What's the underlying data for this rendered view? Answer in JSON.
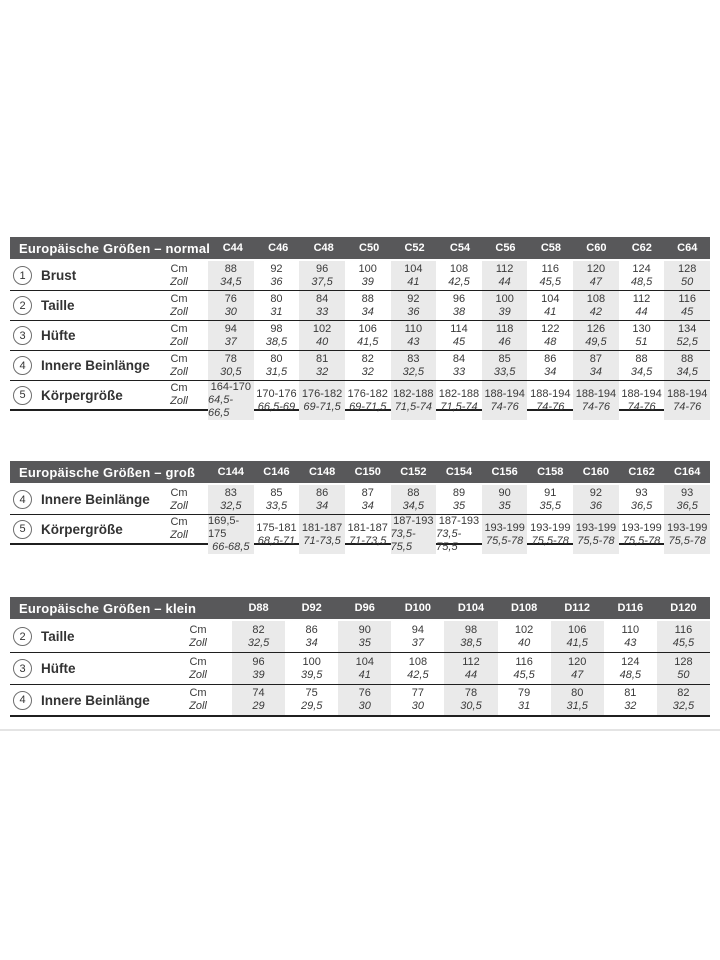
{
  "colors": {
    "header_bg": "#58585a",
    "header_text": "#ffffff",
    "band_bg": "#eaeaea",
    "text": "#3a3a3a",
    "line": "#1f1f1f",
    "footer_rule": "#e4e4e4"
  },
  "unit_labels": {
    "cm": "Cm",
    "zoll": "Zoll"
  },
  "tables": [
    {
      "title": "Europäische Größen – normal",
      "columns": [
        "C44",
        "C46",
        "C48",
        "C50",
        "C52",
        "C54",
        "C56",
        "C58",
        "C60",
        "C62",
        "C64"
      ],
      "rows": [
        {
          "num": "1",
          "label": "Brust",
          "cm": [
            "88",
            "92",
            "96",
            "100",
            "104",
            "108",
            "112",
            "116",
            "120",
            "124",
            "128"
          ],
          "zoll": [
            "34,5",
            "36",
            "37,5",
            "39",
            "41",
            "42,5",
            "44",
            "45,5",
            "47",
            "48,5",
            "50"
          ]
        },
        {
          "num": "2",
          "label": "Taille",
          "cm": [
            "76",
            "80",
            "84",
            "88",
            "92",
            "96",
            "100",
            "104",
            "108",
            "112",
            "116"
          ],
          "zoll": [
            "30",
            "31",
            "33",
            "34",
            "36",
            "38",
            "39",
            "41",
            "42",
            "44",
            "45"
          ]
        },
        {
          "num": "3",
          "label": "Hüfte",
          "cm": [
            "94",
            "98",
            "102",
            "106",
            "110",
            "114",
            "118",
            "122",
            "126",
            "130",
            "134"
          ],
          "zoll": [
            "37",
            "38,5",
            "40",
            "41,5",
            "43",
            "45",
            "46",
            "48",
            "49,5",
            "51",
            "52,5"
          ]
        },
        {
          "num": "4",
          "label": "Innere Beinlänge",
          "cm": [
            "78",
            "80",
            "81",
            "82",
            "83",
            "84",
            "85",
            "86",
            "87",
            "88",
            "88"
          ],
          "zoll": [
            "30,5",
            "31,5",
            "32",
            "32",
            "32,5",
            "33",
            "33,5",
            "34",
            "34",
            "34,5",
            "34,5"
          ]
        },
        {
          "num": "5",
          "label": "Körpergröße",
          "cm": [
            "164-170",
            "170-176",
            "176-182",
            "176-182",
            "182-188",
            "182-188",
            "188-194",
            "188-194",
            "188-194",
            "188-194",
            "188-194"
          ],
          "zoll": [
            "64,5-66,5",
            "66,5-69",
            "69-71,5",
            "69-71,5",
            "71,5-74",
            "71,5-74",
            "74-76",
            "74-76",
            "74-76",
            "74-76",
            "74-76"
          ]
        }
      ]
    },
    {
      "title": "Europäische Größen – groß",
      "columns": [
        "C144",
        "C146",
        "C148",
        "C150",
        "C152",
        "C154",
        "C156",
        "C158",
        "C160",
        "C162",
        "C164"
      ],
      "rows": [
        {
          "num": "4",
          "label": "Innere Beinlänge",
          "cm": [
            "83",
            "85",
            "86",
            "87",
            "88",
            "89",
            "90",
            "91",
            "92",
            "93",
            "93"
          ],
          "zoll": [
            "32,5",
            "33,5",
            "34",
            "34",
            "34,5",
            "35",
            "35",
            "35,5",
            "36",
            "36,5",
            "36,5"
          ]
        },
        {
          "num": "5",
          "label": "Körpergröße",
          "cm": [
            "169,5-175",
            "175-181",
            "181-187",
            "181-187",
            "187-193",
            "187-193",
            "193-199",
            "193-199",
            "193-199",
            "193-199",
            "193-199"
          ],
          "zoll": [
            "66-68,5",
            "68,5-71",
            "71-73,5",
            "71-73,5",
            "73,5-75,5",
            "73,5-75,5",
            "75,5-78",
            "75,5-78",
            "75,5-78",
            "75,5-78",
            "75,5-78"
          ]
        }
      ]
    },
    {
      "title": "Europäische Größen – klein",
      "columns": [
        "D88",
        "D92",
        "D96",
        "D100",
        "D104",
        "D108",
        "D112",
        "D116",
        "D120"
      ],
      "rows": [
        {
          "num": "2",
          "label": "Taille",
          "cm": [
            "82",
            "86",
            "90",
            "94",
            "98",
            "102",
            "106",
            "110",
            "116"
          ],
          "zoll": [
            "32,5",
            "34",
            "35",
            "37",
            "38,5",
            "40",
            "41,5",
            "43",
            "45,5"
          ]
        },
        {
          "num": "3",
          "label": "Hüfte",
          "cm": [
            "96",
            "100",
            "104",
            "108",
            "112",
            "116",
            "120",
            "124",
            "128"
          ],
          "zoll": [
            "39",
            "39,5",
            "41",
            "42,5",
            "44",
            "45,5",
            "47",
            "48,5",
            "50"
          ]
        },
        {
          "num": "4",
          "label": "Innere Beinlänge",
          "cm": [
            "74",
            "75",
            "76",
            "77",
            "78",
            "79",
            "80",
            "81",
            "82"
          ],
          "zoll": [
            "29",
            "29,5",
            "30",
            "30",
            "30,5",
            "31",
            "31,5",
            "32",
            "32,5"
          ]
        }
      ]
    }
  ]
}
